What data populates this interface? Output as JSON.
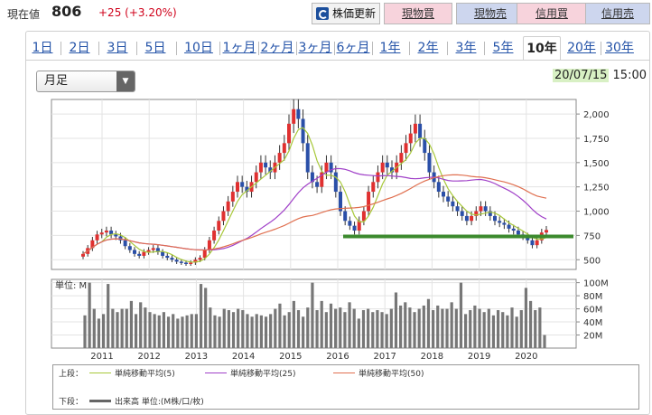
{
  "header": {
    "price_label": "現在値",
    "price": "806",
    "change": "+25 (+3.20%)",
    "update_button": "株価更新",
    "buttons": [
      {
        "label": "現物買",
        "color": "#f7d3dc"
      },
      {
        "label": "現物売",
        "color": "#cdd6ee"
      },
      {
        "label": "信用買",
        "color": "#f7d3dc"
      },
      {
        "label": "信用売",
        "color": "#cdd6ee"
      }
    ]
  },
  "tabs": [
    "1日",
    "2日",
    "3日",
    "5日",
    "10日",
    "1ヶ月",
    "2ヶ月",
    "3ヶ月",
    "6ヶ月",
    "1年",
    "2年",
    "3年",
    "5年",
    "10年",
    "20年",
    "30年"
  ],
  "active_tab": "10年",
  "period_select": "月足",
  "timestamp": {
    "date": "20/07/15",
    "time": "15:00"
  },
  "legend": {
    "upper_label": "上段：",
    "lower_label": "下段：",
    "ma5": "単純移動平均(5)",
    "ma25": "単純移動平均(25)",
    "ma50": "単純移動平均(50)",
    "volume": "出来高 単位:(M株/口/枚)"
  },
  "chart_data": [
    {
      "type": "candlestick",
      "x_labels": [
        "2011",
        "2012",
        "2013",
        "2014",
        "2015",
        "2016",
        "2017",
        "2018",
        "2019",
        "2020"
      ],
      "y_ticks": [
        "2,000",
        "1,750",
        "1,500",
        "1,250",
        "1,000",
        "750",
        "500"
      ],
      "ylim": [
        400,
        2150
      ],
      "support_line": 740,
      "approx_monthly_close": [
        560,
        620,
        700,
        760,
        780,
        800,
        760,
        740,
        700,
        640,
        600,
        560,
        540,
        580,
        600,
        620,
        580,
        540,
        520,
        500,
        480,
        470,
        460,
        470,
        500,
        520,
        600,
        700,
        800,
        900,
        1000,
        1100,
        1200,
        1300,
        1250,
        1200,
        1300,
        1400,
        1500,
        1450,
        1400,
        1500,
        1600,
        1700,
        1900,
        2050,
        1950,
        1700,
        1400,
        1300,
        1250,
        1400,
        1500,
        1400,
        1200,
        1000,
        900,
        850,
        800,
        900,
        1000,
        1200,
        1300,
        1400,
        1500,
        1450,
        1400,
        1500,
        1600,
        1700,
        1800,
        1900,
        1750,
        1600,
        1400,
        1300,
        1200,
        1150,
        1100,
        1050,
        1000,
        950,
        900,
        950,
        1000,
        1050,
        1000,
        950,
        900,
        880,
        860,
        820,
        800,
        760,
        740,
        700,
        650,
        700,
        780,
        806
      ],
      "series": [
        {
          "name": "単純移動平均(5)",
          "color": "#a8c83a"
        },
        {
          "name": "単純移動平均(25)",
          "color": "#a040c8"
        },
        {
          "name": "単純移動平均(50)",
          "color": "#e07050"
        }
      ]
    },
    {
      "type": "bar",
      "unit_label": "単位: M",
      "y_ticks": [
        "100M",
        "80M",
        "60M",
        "40M",
        "20M"
      ],
      "ylim": [
        0,
        105
      ],
      "values": [
        50,
        100,
        60,
        45,
        52,
        98,
        60,
        55,
        60,
        60,
        72,
        52,
        70,
        62,
        55,
        52,
        50,
        55,
        48,
        52,
        45,
        48,
        50,
        52,
        52,
        98,
        92,
        62,
        50,
        48,
        60,
        58,
        55,
        60,
        58,
        52,
        48,
        52,
        50,
        48,
        52,
        60,
        68,
        50,
        55,
        72,
        58,
        48,
        62,
        100,
        58,
        72,
        55,
        68,
        60,
        62,
        55,
        70,
        60,
        45,
        58,
        60,
        55,
        58,
        55,
        52,
        60,
        85,
        65,
        70,
        62,
        55,
        60,
        65,
        75,
        58,
        65,
        60,
        60,
        70,
        60,
        100,
        52,
        58,
        65,
        60,
        55,
        60,
        50,
        58,
        55,
        50,
        62,
        48,
        58,
        92,
        72,
        58,
        62,
        20
      ]
    }
  ]
}
